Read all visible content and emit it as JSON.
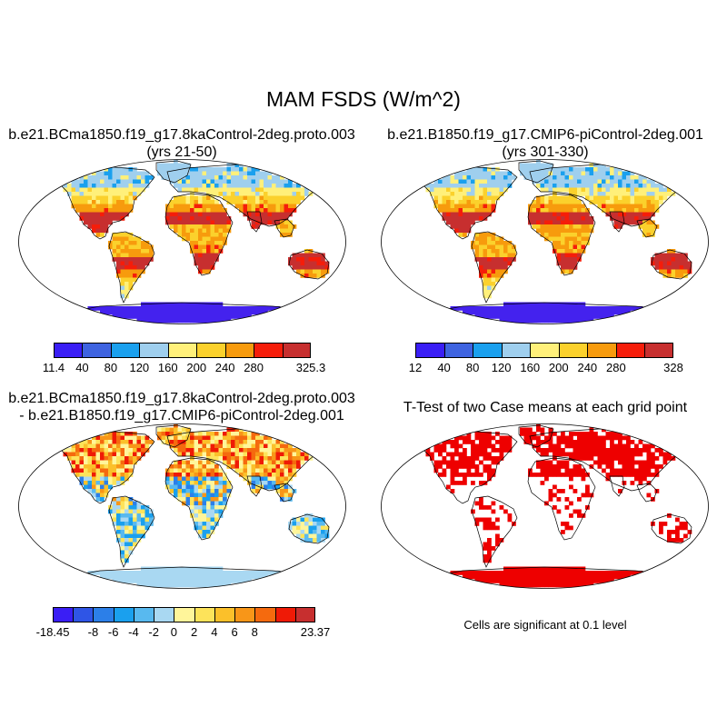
{
  "figure": {
    "title": "MAM FSDS (W/m^2)"
  },
  "panels": [
    {
      "id": "case1",
      "title_line1": "b.e21.BCma1850.f19_g17.8kaControl-2deg.proto.003",
      "title_line2": "(yrs 21-50)"
    },
    {
      "id": "case2",
      "title_line1": "b.e21.B1850.f19_g17.CMIP6-piControl-2deg.001",
      "title_line2": "(yrs 301-330)"
    },
    {
      "id": "diff",
      "title_line1": "b.e21.BCma1850.f19_g17.8kaControl-2deg.proto.003",
      "title_line2": "- b.e21.B1850.f19_g17.CMIP6-piControl-2deg.001"
    },
    {
      "id": "ttest",
      "title_line1": "T-Test of two Case means at each grid point",
      "title_line2": ""
    }
  ],
  "colorbars": {
    "case1": {
      "colors": [
        "#3a1ef5",
        "#3e63e0",
        "#1aa0ee",
        "#9fcfee",
        "#fff07a",
        "#fbd12c",
        "#f79b0d",
        "#f51d0a",
        "#c72f2f"
      ],
      "labels": [
        "11.4",
        "40",
        "80",
        "120",
        "160",
        "200",
        "240",
        "280",
        "325.3"
      ]
    },
    "case2": {
      "colors": [
        "#3a1ef5",
        "#3e63e0",
        "#1aa0ee",
        "#9fcfee",
        "#fff07a",
        "#fbd12c",
        "#f79b0d",
        "#f51d0a",
        "#c72f2f"
      ],
      "labels": [
        "12",
        "40",
        "80",
        "120",
        "160",
        "200",
        "240",
        "280",
        "328"
      ]
    },
    "diff": {
      "colors": [
        "#3a1ef5",
        "#2f55e6",
        "#2c7fe8",
        "#1aa0ee",
        "#58b9ef",
        "#a9d8f2",
        "#fff59a",
        "#fde35a",
        "#fbc02a",
        "#f89618",
        "#f56a0e",
        "#ef1a06",
        "#c72f2f"
      ],
      "labels": [
        "-18.45",
        "-8",
        "-6",
        "-4",
        "-2",
        "0",
        "2",
        "4",
        "6",
        "8",
        "23.37"
      ]
    }
  },
  "significance": {
    "note": "Cells are significant at 0.1 level",
    "color": "#ee0000"
  },
  "map_colors": {
    "ocean": "#ffffff",
    "coast": "#000000",
    "antarctica_abs": "#4422ee",
    "antarctica_diff": "#a9d8f2"
  }
}
